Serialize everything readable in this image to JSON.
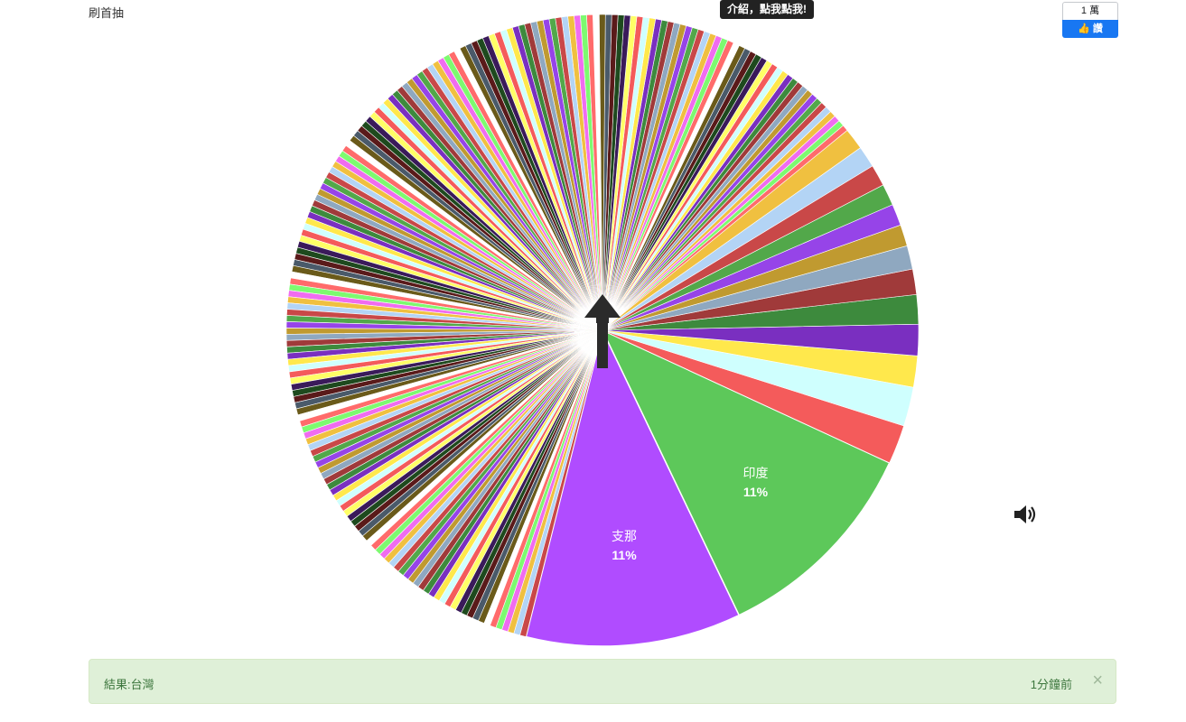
{
  "header": {
    "link_label": "刷首抽",
    "intro_tip": "介紹，點我點我!"
  },
  "facebook": {
    "count": "1 萬",
    "button_label": "讚",
    "brand_color": "#1877f2"
  },
  "wheel": {
    "pointer_icon": "up-arrow-icon",
    "labeled_slices": [
      {
        "label": "支那",
        "percent": "11%",
        "color": "#b04cff",
        "fraction": 0.11
      },
      {
        "label": "印度",
        "percent": "11%",
        "color": "#5dc85a",
        "fraction": 0.11
      }
    ],
    "unlabeled_large_slices": [
      {
        "color": "#f45b5b",
        "fraction": 0.02
      },
      {
        "color": "#cffffe",
        "fraction": 0.02
      },
      {
        "color": "#ffe84c",
        "fraction": 0.016
      },
      {
        "color": "#7a2fc0",
        "fraction": 0.016
      },
      {
        "color": "#3d8a3d",
        "fraction": 0.015
      },
      {
        "color": "#a03a3a",
        "fraction": 0.013
      },
      {
        "color": "#8fa8c0",
        "fraction": 0.012
      },
      {
        "color": "#c09a30",
        "fraction": 0.011
      },
      {
        "color": "#9644e8",
        "fraction": 0.011
      },
      {
        "color": "#52a84a",
        "fraction": 0.011
      },
      {
        "color": "#c94848",
        "fraction": 0.011
      },
      {
        "color": "#b3d4f5",
        "fraction": 0.011
      },
      {
        "color": "#f0c040",
        "fraction": 0.011
      }
    ],
    "palette": [
      "#ff6b6b",
      "#7dfa70",
      "#f06cf0",
      "#f0c040",
      "#b3d4f5",
      "#c94848",
      "#52a84a",
      "#9644e8",
      "#c09a30",
      "#8fa8c0",
      "#a03a3a",
      "#3d8a3d",
      "#7a2fc0",
      "#ffe84c",
      "#cffffe",
      "#f45b5b",
      "#ffff66",
      "#3a1a5a",
      "#1e4a1e",
      "#5a1a1a",
      "#4a5a6a",
      "#6a5a1a",
      "#ffffff"
    ]
  },
  "sound": {
    "icon": "speaker-icon"
  },
  "result": {
    "text": "結果:台灣",
    "time": "1分鐘前",
    "close_symbol": "×",
    "bg_color": "#dff0d8"
  }
}
